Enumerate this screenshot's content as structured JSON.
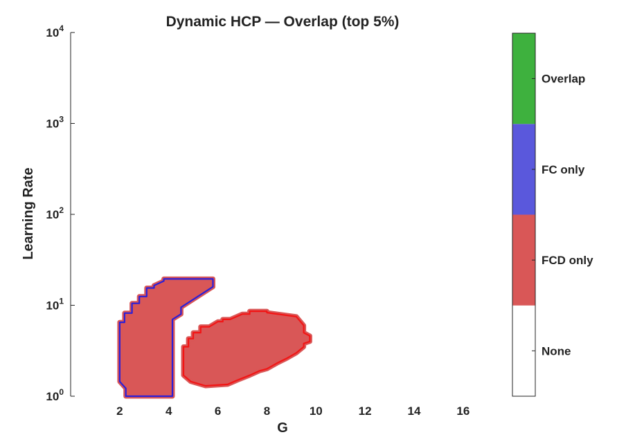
{
  "chart_data": {
    "type": "heatmap",
    "title": "Dynamic HCP — Overlap (top 5%)",
    "xlabel": "G",
    "ylabel": "Learning Rate",
    "xlim": [
      0,
      17.5
    ],
    "ylim": [
      1,
      10000
    ],
    "yscale": "log",
    "xticks": [
      2,
      4,
      6,
      8,
      10,
      12,
      14,
      16
    ],
    "yticks": [
      {
        "value": 1,
        "base": "10",
        "exp": "0"
      },
      {
        "value": 10,
        "base": "10",
        "exp": "1"
      },
      {
        "value": 100,
        "base": "10",
        "exp": "2"
      },
      {
        "value": 1000,
        "base": "10",
        "exp": "3"
      },
      {
        "value": 10000,
        "base": "10",
        "exp": "4"
      }
    ],
    "grid": false,
    "colorbar": [
      {
        "label": "None",
        "color": "#ffffff"
      },
      {
        "label": "FCD only",
        "color": "#d95757"
      },
      {
        "label": "FC only",
        "color": "#5a58dc"
      },
      {
        "label": "Overlap",
        "color": "#3eb13e"
      }
    ],
    "regions": [
      {
        "name": "Left FCD region",
        "category": "FCD only",
        "fill": "#d95757",
        "outline": "#2a1fd8",
        "outline_halo": "#d95757",
        "points": [
          [
            2.25,
            1
          ],
          [
            2.25,
            1.22
          ],
          [
            2.0,
            1.45
          ],
          [
            2.0,
            6.5
          ],
          [
            2.2,
            6.5
          ],
          [
            2.2,
            8.2
          ],
          [
            2.5,
            8.2
          ],
          [
            2.5,
            10.5
          ],
          [
            2.8,
            10.5
          ],
          [
            2.8,
            12.5
          ],
          [
            3.1,
            12.5
          ],
          [
            3.1,
            15.5
          ],
          [
            3.4,
            15.5
          ],
          [
            3.4,
            16.5
          ],
          [
            3.8,
            18.5
          ],
          [
            3.8,
            19.5
          ],
          [
            5.8,
            19.5
          ],
          [
            5.8,
            16.0
          ],
          [
            4.5,
            9.5
          ],
          [
            4.5,
            8.0
          ],
          [
            4.15,
            7.0
          ],
          [
            4.15,
            1
          ],
          [
            2.25,
            1
          ]
        ]
      },
      {
        "name": "Right FCD region",
        "category": "FCD only",
        "fill": "#d95757",
        "outline": "#f21515",
        "outline_halo": "#d95757",
        "points": [
          [
            5.5,
            1.3
          ],
          [
            4.9,
            1.45
          ],
          [
            4.6,
            1.7
          ],
          [
            4.6,
            3.5
          ],
          [
            4.8,
            3.5
          ],
          [
            4.8,
            4.3
          ],
          [
            5.0,
            4.3
          ],
          [
            5.0,
            5.0
          ],
          [
            5.3,
            5.0
          ],
          [
            5.3,
            5.8
          ],
          [
            5.65,
            5.8
          ],
          [
            6.0,
            6.6
          ],
          [
            6.2,
            6.6
          ],
          [
            6.2,
            7.0
          ],
          [
            6.5,
            7.0
          ],
          [
            7.0,
            8.0
          ],
          [
            7.3,
            8.0
          ],
          [
            7.3,
            8.6
          ],
          [
            8.0,
            8.6
          ],
          [
            8.0,
            8.3
          ],
          [
            9.2,
            7.5
          ],
          [
            9.5,
            6.0
          ],
          [
            9.5,
            5.0
          ],
          [
            9.75,
            4.6
          ],
          [
            9.75,
            4.0
          ],
          [
            9.5,
            3.8
          ],
          [
            9.5,
            3.5
          ],
          [
            9.2,
            3.0
          ],
          [
            8.8,
            2.6
          ],
          [
            8.4,
            2.3
          ],
          [
            8.0,
            2.0
          ],
          [
            7.7,
            1.9
          ],
          [
            7.3,
            1.7
          ],
          [
            6.8,
            1.5
          ],
          [
            6.4,
            1.35
          ],
          [
            5.5,
            1.3
          ]
        ]
      }
    ]
  }
}
